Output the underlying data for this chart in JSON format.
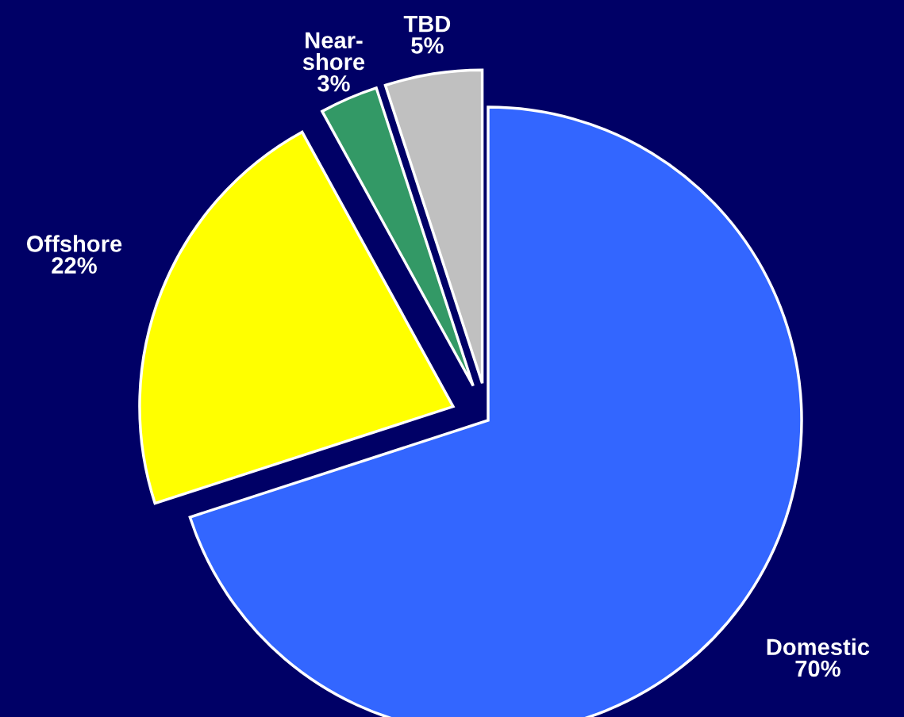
{
  "chart_data": {
    "type": "pie",
    "categories": [
      "Domestic",
      "Offshore",
      "Near-\nshore",
      "TBD"
    ],
    "values": [
      70,
      22,
      3,
      5
    ],
    "colors": [
      "#3366ff",
      "#ffff00",
      "#339966",
      "#c0c0c0"
    ],
    "value_labels": [
      "70%",
      "22%",
      "3%",
      "5%"
    ]
  }
}
